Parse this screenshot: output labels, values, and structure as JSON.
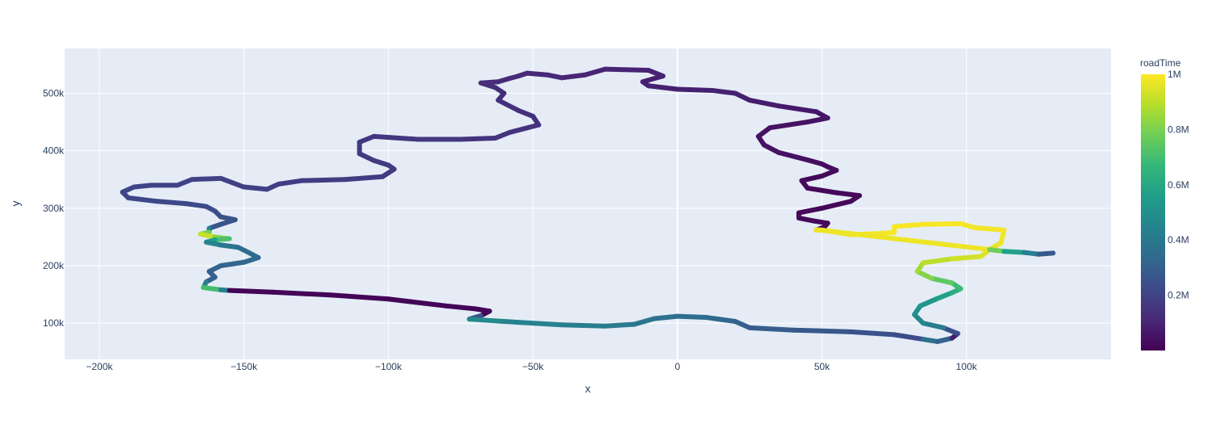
{
  "chart_data": {
    "type": "line",
    "xlabel": "x",
    "ylabel": "y",
    "xlim": [
      -212000,
      150000
    ],
    "ylim": [
      37000,
      578000
    ],
    "x_ticks": [
      -200000,
      -150000,
      -100000,
      -50000,
      0,
      50000,
      100000
    ],
    "x_tick_labels": [
      "−200k",
      "−150k",
      "−100k",
      "−50k",
      "0",
      "50k",
      "100k"
    ],
    "y_ticks": [
      100000,
      200000,
      300000,
      400000,
      500000
    ],
    "y_tick_labels": [
      "100k",
      "200k",
      "300k",
      "400k",
      "500k"
    ],
    "grid": true,
    "colorbar": {
      "title": "roadTime",
      "colorscale": "Viridis",
      "range": [
        0,
        1000000
      ],
      "ticks": [
        200000,
        400000,
        600000,
        800000,
        1000000
      ],
      "tick_labels": [
        "0.2M",
        "0.4M",
        "0.6M",
        "0.8M",
        "1M"
      ]
    },
    "colors": {
      "plot_bg": "#e5ecf6",
      "grid": "#ffffff",
      "text": "#2a3f5f"
    },
    "series": [
      {
        "points": [
          [
            48000,
            262000,
            0.03
          ],
          [
            51000,
            268000,
            0.03
          ],
          [
            52000,
            274000,
            0.02
          ],
          [
            47000,
            278000,
            0.02
          ],
          [
            42000,
            283000,
            0.02
          ],
          [
            42000,
            292000,
            0.02
          ],
          [
            50000,
            300000,
            0.02
          ],
          [
            60000,
            312000,
            0.02
          ],
          [
            63000,
            322000,
            0.02
          ],
          [
            55000,
            327000,
            0.02
          ],
          [
            45000,
            335000,
            0.02
          ],
          [
            43000,
            348000,
            0.02
          ],
          [
            50000,
            356000,
            0.02
          ],
          [
            55000,
            366000,
            0.03
          ],
          [
            52000,
            372000,
            0.03
          ],
          [
            50000,
            377000,
            0.03
          ],
          [
            45000,
            384000,
            0.04
          ],
          [
            35000,
            397000,
            0.05
          ],
          [
            30000,
            410000,
            0.05
          ],
          [
            28000,
            425000,
            0.05
          ],
          [
            32000,
            440000,
            0.05
          ],
          [
            45000,
            450000,
            0.05
          ],
          [
            52000,
            457000,
            0.05
          ],
          [
            48000,
            468000,
            0.06
          ],
          [
            35000,
            478000,
            0.07
          ],
          [
            25000,
            488000,
            0.08
          ],
          [
            20000,
            500000,
            0.09
          ],
          [
            12000,
            505000,
            0.09
          ],
          [
            0,
            507000,
            0.09
          ],
          [
            -10000,
            513000,
            0.09
          ],
          [
            -12000,
            520000,
            0.09
          ],
          [
            -5000,
            530000,
            0.09
          ],
          [
            -10000,
            540000,
            0.1
          ],
          [
            -25000,
            542000,
            0.1
          ],
          [
            -32000,
            532000,
            0.1
          ],
          [
            -40000,
            527000,
            0.11
          ],
          [
            -45000,
            532000,
            0.11
          ],
          [
            -52000,
            535000,
            0.11
          ],
          [
            -55000,
            530000,
            0.12
          ],
          [
            -58000,
            526000,
            0.12
          ],
          [
            -62000,
            520000,
            0.12
          ],
          [
            -68000,
            518000,
            0.12
          ],
          [
            -63000,
            510000,
            0.13
          ],
          [
            -60000,
            500000,
            0.13
          ],
          [
            -62000,
            488000,
            0.13
          ],
          [
            -55000,
            470000,
            0.14
          ],
          [
            -50000,
            460000,
            0.14
          ],
          [
            -48000,
            445000,
            0.14
          ],
          [
            -58000,
            432000,
            0.15
          ],
          [
            -63000,
            422000,
            0.15
          ],
          [
            -75000,
            420000,
            0.15
          ],
          [
            -90000,
            420000,
            0.16
          ],
          [
            -105000,
            425000,
            0.16
          ],
          [
            -110000,
            415000,
            0.16
          ],
          [
            -110000,
            395000,
            0.17
          ],
          [
            -105000,
            383000,
            0.17
          ],
          [
            -100000,
            375000,
            0.17
          ],
          [
            -98000,
            368000,
            0.17
          ],
          [
            -102000,
            355000,
            0.17
          ],
          [
            -115000,
            350000,
            0.18
          ],
          [
            -130000,
            348000,
            0.18
          ],
          [
            -138000,
            342000,
            0.18
          ],
          [
            -142000,
            333000,
            0.19
          ],
          [
            -150000,
            337000,
            0.19
          ],
          [
            -158000,
            352000,
            0.19
          ],
          [
            -168000,
            350000,
            0.2
          ],
          [
            -173000,
            340000,
            0.2
          ],
          [
            -182000,
            340000,
            0.2
          ],
          [
            -188000,
            337000,
            0.21
          ],
          [
            -192000,
            328000,
            0.21
          ],
          [
            -190000,
            318000,
            0.21
          ],
          [
            -180000,
            312000,
            0.22
          ],
          [
            -170000,
            308000,
            0.22
          ],
          [
            -163000,
            303000,
            0.23
          ],
          [
            -160000,
            295000,
            0.23
          ],
          [
            -158000,
            285000,
            0.24
          ],
          [
            -153000,
            280000,
            0.25
          ],
          [
            -158000,
            272000,
            0.26
          ],
          [
            -162000,
            265000,
            0.27
          ],
          [
            -162000,
            258000,
            0.6
          ],
          [
            -165000,
            255000,
            0.98
          ],
          [
            -160000,
            250000,
            0.85
          ],
          [
            -155000,
            247000,
            0.78
          ],
          [
            -160000,
            245000,
            0.65
          ],
          [
            -163000,
            241000,
            0.5
          ],
          [
            -158000,
            236000,
            0.4
          ],
          [
            -152000,
            232000,
            0.37
          ],
          [
            -148000,
            222000,
            0.35
          ],
          [
            -145000,
            214000,
            0.34
          ],
          [
            -150000,
            206000,
            0.33
          ],
          [
            -158000,
            200000,
            0.32
          ],
          [
            -162000,
            190000,
            0.31
          ],
          [
            -160000,
            180000,
            0.3
          ],
          [
            -163000,
            172000,
            0.3
          ],
          [
            -164000,
            162000,
            0.55
          ],
          [
            -158000,
            158000,
            0.85
          ],
          [
            -155000,
            157000,
            0.01
          ],
          [
            -140000,
            154000,
            0.01
          ],
          [
            -120000,
            149000,
            0.01
          ],
          [
            -100000,
            142000,
            0.01
          ],
          [
            -80000,
            130000,
            0.01
          ],
          [
            -70000,
            125000,
            0.01
          ],
          [
            -65000,
            121000,
            0.01
          ],
          [
            -68000,
            113000,
            0.01
          ],
          [
            -72000,
            107000,
            0.5
          ],
          [
            -60000,
            103000,
            0.45
          ],
          [
            -40000,
            97000,
            0.43
          ],
          [
            -25000,
            95000,
            0.42
          ],
          [
            -15000,
            98000,
            0.4
          ],
          [
            -8000,
            108000,
            0.38
          ],
          [
            0,
            112000,
            0.36
          ],
          [
            10000,
            110000,
            0.34
          ],
          [
            20000,
            103000,
            0.32
          ],
          [
            25000,
            92000,
            0.3
          ],
          [
            40000,
            88000,
            0.28
          ],
          [
            60000,
            85000,
            0.26
          ],
          [
            75000,
            80000,
            0.24
          ],
          [
            85000,
            72000,
            0.22
          ],
          [
            90000,
            68000,
            0.52
          ],
          [
            95000,
            74000,
            0.1
          ],
          [
            97000,
            82000,
            0.08
          ],
          [
            92000,
            92000,
            0.4
          ],
          [
            85000,
            100000,
            0.45
          ],
          [
            82000,
            115000,
            0.48
          ],
          [
            84000,
            130000,
            0.5
          ],
          [
            90000,
            143000,
            0.55
          ],
          [
            95000,
            153000,
            0.6
          ],
          [
            98000,
            160000,
            0.65
          ],
          [
            95000,
            170000,
            0.72
          ],
          [
            88000,
            178000,
            0.78
          ],
          [
            83000,
            190000,
            0.85
          ],
          [
            85000,
            205000,
            0.88
          ],
          [
            95000,
            212000,
            0.92
          ],
          [
            105000,
            216000,
            0.94
          ],
          [
            108000,
            228000,
            0.96
          ],
          [
            112000,
            240000,
            0.97
          ],
          [
            113000,
            262000,
            0.99
          ],
          [
            103000,
            266000,
            0.98
          ],
          [
            98000,
            273000,
            0.99
          ],
          [
            85000,
            272000,
            0.99
          ],
          [
            75000,
            268000,
            0.99
          ],
          [
            75000,
            258000,
            0.99
          ],
          [
            70000,
            256000,
            0.99
          ],
          [
            60000,
            254000,
            0.99
          ],
          [
            50000,
            262000,
            0.99
          ],
          [
            48000,
            262000,
            0.98
          ],
          [
            48500,
            262500,
            0.99
          ],
          [
            108000,
            228000,
            0.96
          ],
          [
            113000,
            225000,
            0.6
          ],
          [
            120000,
            223000,
            0.55
          ],
          [
            125000,
            220000,
            0.3
          ],
          [
            130000,
            222000,
            0.25
          ]
        ]
      }
    ]
  }
}
